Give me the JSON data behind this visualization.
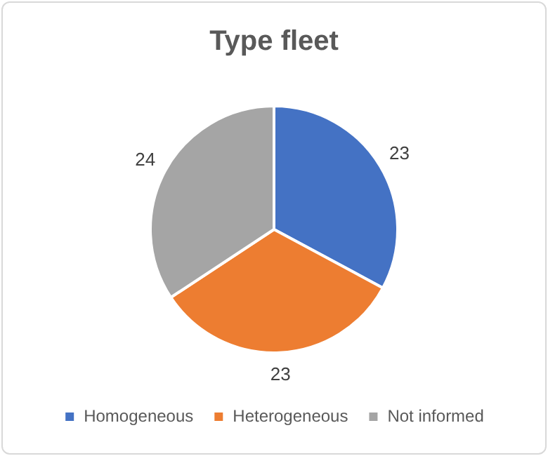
{
  "chart_data": {
    "type": "pie",
    "title": "Type fleet",
    "categories": [
      "Homogeneous",
      "Heterogeneous",
      "Not informed"
    ],
    "values": [
      23,
      23,
      24
    ],
    "colors": [
      "#4472c4",
      "#ed7d31",
      "#a5a5a5"
    ],
    "data_labels": true,
    "legend": "bottom"
  }
}
